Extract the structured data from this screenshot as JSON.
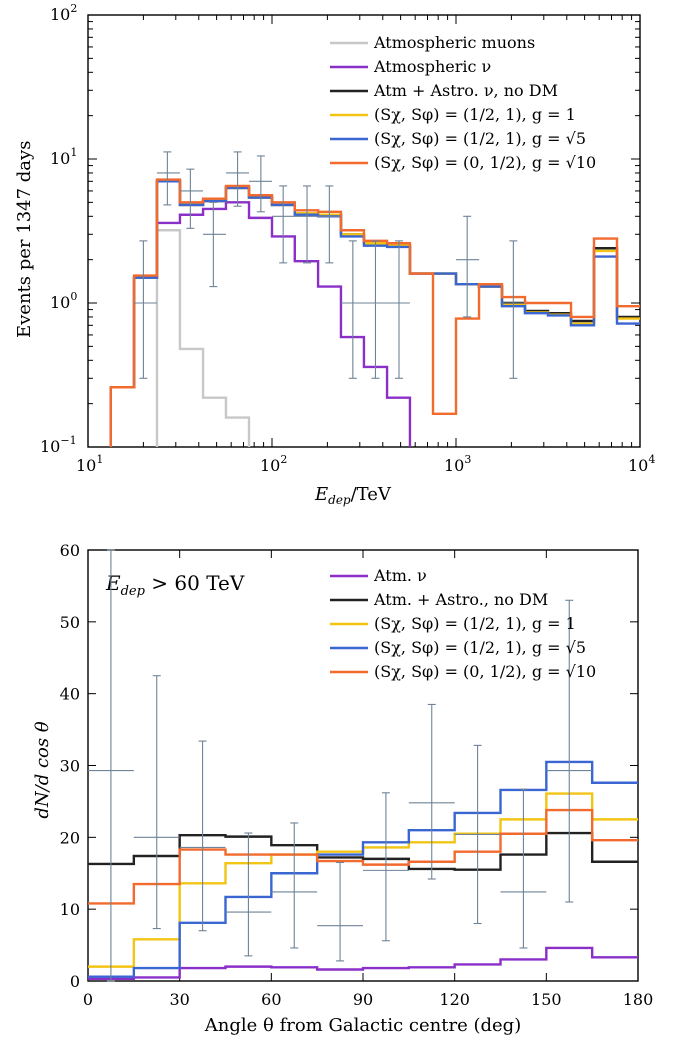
{
  "colors": {
    "muons": "#c8c8c8",
    "atm_nu": "#8b2fc9",
    "nodm": "#222222",
    "g1": "#f2c413",
    "g5": "#3a66d1",
    "g10": "#f26a2e",
    "data": "#6e8397"
  },
  "chart_data": [
    {
      "type": "line",
      "subtype": "step-histogram",
      "x_scale": "log",
      "y_scale": "log",
      "xlabel_main": "E",
      "xlabel_sub": "dep",
      "xlabel_unit": "/TeV",
      "ylabel": "Events per 1347 days",
      "xlim": [
        10,
        10000
      ],
      "ylim": [
        0.1,
        100
      ],
      "x_ticks": [
        {
          "base": "10",
          "exp": "1"
        },
        {
          "base": "10",
          "exp": "2"
        },
        {
          "base": "10",
          "exp": "3"
        },
        {
          "base": "10",
          "exp": "4"
        }
      ],
      "y_ticks": [
        {
          "base": "10",
          "exp": "−1"
        },
        {
          "base": "10",
          "exp": "0"
        },
        {
          "base": "10",
          "exp": "1"
        },
        {
          "base": "10",
          "exp": "2"
        }
      ],
      "bin_edges": [
        10,
        13.3,
        17.8,
        23.7,
        31.6,
        42.2,
        56.2,
        75,
        100,
        133,
        178,
        237,
        316,
        422,
        562,
        750,
        1000,
        1334,
        1778,
        2371,
        3162,
        4217,
        5623,
        7499,
        10000
      ],
      "legend": [
        {
          "key": "muons",
          "label": "Atmospheric muons"
        },
        {
          "key": "atm_nu",
          "label": "Atmospheric ν"
        },
        {
          "key": "nodm",
          "label": "Atm + Astro. ν, no DM"
        },
        {
          "key": "g1",
          "label": "(Sχ, Sφ) = (1/2, 1), g = 1"
        },
        {
          "key": "g5",
          "label": "(Sχ, Sφ) = (1/2, 1), g = √5"
        },
        {
          "key": "g10",
          "label": "(Sχ, Sφ) = (0, 1/2), g = √10"
        }
      ],
      "legend_position": "top-right",
      "series": [
        {
          "key": "muons",
          "values": [
            0,
            0,
            0,
            3.2,
            0.48,
            0.22,
            0.16,
            0.09,
            0,
            0,
            0,
            0,
            0,
            0,
            0,
            0,
            0,
            0,
            0,
            0,
            0,
            0,
            0,
            0
          ]
        },
        {
          "key": "atm_nu",
          "values": [
            0,
            0.26,
            1.5,
            3.6,
            4.1,
            4.5,
            5.0,
            3.9,
            2.9,
            1.95,
            1.3,
            0.58,
            0.36,
            0.22,
            0,
            0,
            0,
            0,
            0,
            0,
            0,
            0,
            0,
            0
          ]
        },
        {
          "key": "nodm",
          "values": [
            0,
            0.26,
            1.5,
            7.0,
            4.8,
            5.1,
            6.3,
            5.4,
            4.8,
            4.2,
            4.1,
            3.0,
            2.6,
            2.5,
            1.6,
            1.6,
            1.35,
            1.3,
            1.0,
            0.88,
            0.85,
            0.75,
            2.4,
            0.8
          ]
        },
        {
          "key": "g1",
          "values": [
            0,
            0.26,
            1.5,
            7.0,
            4.8,
            5.1,
            6.3,
            5.4,
            4.8,
            4.2,
            4.1,
            3.0,
            2.6,
            2.5,
            1.6,
            1.6,
            1.35,
            1.3,
            0.97,
            0.86,
            0.83,
            0.72,
            2.3,
            0.78
          ]
        },
        {
          "key": "g5",
          "values": [
            0,
            0.26,
            1.5,
            7.0,
            4.8,
            5.1,
            6.3,
            5.4,
            4.8,
            4.1,
            4.0,
            2.9,
            2.5,
            2.45,
            1.6,
            1.6,
            1.35,
            1.3,
            0.95,
            0.85,
            0.82,
            0.7,
            2.1,
            0.72
          ]
        },
        {
          "key": "g10",
          "values": [
            0,
            0.26,
            1.55,
            7.2,
            5.0,
            5.3,
            6.5,
            5.6,
            5.0,
            4.4,
            4.3,
            3.2,
            2.7,
            2.6,
            1.6,
            0.17,
            0.78,
            1.35,
            1.1,
            1.0,
            1.0,
            0.8,
            2.8,
            0.95
          ]
        }
      ],
      "data_points": [
        {
          "x": 20,
          "xlo": 17.8,
          "xhi": 23.7,
          "y": 1.0,
          "ylo": 0.3,
          "yhi": 2.7
        },
        {
          "x": 27,
          "xlo": 23.7,
          "xhi": 31.6,
          "y": 8.0,
          "ylo": 4.8,
          "yhi": 11.2
        },
        {
          "x": 36,
          "xlo": 31.6,
          "xhi": 42.2,
          "y": 6.0,
          "ylo": 3.3,
          "yhi": 8.5
        },
        {
          "x": 48,
          "xlo": 42.2,
          "xhi": 56.2,
          "y": 3.0,
          "ylo": 1.3,
          "yhi": 5.0
        },
        {
          "x": 65,
          "xlo": 56.2,
          "xhi": 75,
          "y": 8.0,
          "ylo": 4.7,
          "yhi": 11.2
        },
        {
          "x": 87,
          "xlo": 75,
          "xhi": 100,
          "y": 7.0,
          "ylo": 4.3,
          "yhi": 10.5
        },
        {
          "x": 115,
          "xlo": 100,
          "xhi": 133,
          "y": 4.0,
          "ylo": 1.9,
          "yhi": 6.5
        },
        {
          "x": 155,
          "xlo": 133,
          "xhi": 178,
          "y": 4.0,
          "ylo": 1.9,
          "yhi": 6.5
        },
        {
          "x": 205,
          "xlo": 178,
          "xhi": 237,
          "y": 4.0,
          "ylo": 1.9,
          "yhi": 6.5
        },
        {
          "x": 275,
          "xlo": 237,
          "xhi": 316,
          "y": 1.0,
          "ylo": 0.3,
          "yhi": 2.7
        },
        {
          "x": 365,
          "xlo": 316,
          "xhi": 422,
          "y": 1.0,
          "ylo": 0.3,
          "yhi": 2.7
        },
        {
          "x": 490,
          "xlo": 422,
          "xhi": 562,
          "y": 1.0,
          "ylo": 0.3,
          "yhi": 2.7
        },
        {
          "x": 1150,
          "xlo": 1000,
          "xhi": 1334,
          "y": 2.0,
          "ylo": 0.8,
          "yhi": 4.0
        },
        {
          "x": 2050,
          "xlo": 1778,
          "xhi": 2371,
          "y": 1.0,
          "ylo": 0.3,
          "yhi": 2.7
        }
      ]
    },
    {
      "type": "line",
      "subtype": "step-histogram",
      "annotation_main": "E",
      "annotation_sub": "dep",
      "annotation_rest": " > 60 TeV",
      "xlabel": "Angle θ from Galactic centre (deg)",
      "ylabel": "dN/d cos θ",
      "xlim": [
        0,
        180
      ],
      "ylim": [
        0,
        60
      ],
      "x_ticks": [
        "0",
        "30",
        "60",
        "90",
        "120",
        "150",
        "180"
      ],
      "y_ticks": [
        "0",
        "10",
        "20",
        "30",
        "40",
        "50",
        "60"
      ],
      "bin_edges": [
        0,
        15,
        30,
        45,
        60,
        75,
        90,
        105,
        120,
        135,
        150,
        165,
        180
      ],
      "legend": [
        {
          "key": "atm_nu",
          "label": "Atm. ν"
        },
        {
          "key": "nodm",
          "label": "Atm. + Astro., no DM"
        },
        {
          "key": "g1",
          "label": "(Sχ, Sφ) = (1/2, 1), g = 1"
        },
        {
          "key": "g5",
          "label": "(Sχ, Sφ) = (1/2, 1), g = √5"
        },
        {
          "key": "g10",
          "label": "(Sχ, Sφ) = (0, 1/2), g = √10"
        }
      ],
      "legend_position": "top-right",
      "series": [
        {
          "key": "atm_nu",
          "values": [
            0.3,
            0.5,
            1.8,
            2.0,
            1.9,
            1.6,
            1.8,
            1.9,
            2.3,
            3.0,
            4.6,
            3.3
          ]
        },
        {
          "key": "nodm",
          "values": [
            16.3,
            17.4,
            20.3,
            20.1,
            18.9,
            17.2,
            17.0,
            15.6,
            15.5,
            17.6,
            20.6,
            16.6
          ]
        },
        {
          "key": "g1",
          "values": [
            2.0,
            5.8,
            13.6,
            16.4,
            17.6,
            18.0,
            18.6,
            19.3,
            20.5,
            22.5,
            26.1,
            22.5
          ]
        },
        {
          "key": "g5",
          "values": [
            0.6,
            1.8,
            8.1,
            11.7,
            15.0,
            17.6,
            19.3,
            21.0,
            23.4,
            26.6,
            30.5,
            27.6
          ]
        },
        {
          "key": "g10",
          "values": [
            10.8,
            13.5,
            18.3,
            17.6,
            17.6,
            16.7,
            16.2,
            16.6,
            18.0,
            20.5,
            23.8,
            19.6
          ]
        }
      ],
      "data_points": [
        {
          "x": 7.5,
          "y": 29.3,
          "ylo": 0,
          "yhi": 60,
          "xerr": 7.5
        },
        {
          "x": 22.5,
          "y": 20.0,
          "ylo": 7.3,
          "yhi": 42.5,
          "xerr": 7.5
        },
        {
          "x": 37.5,
          "y": 18.6,
          "ylo": 7.0,
          "yhi": 33.4,
          "xerr": 7.5
        },
        {
          "x": 52.5,
          "y": 9.6,
          "ylo": 3.5,
          "yhi": 20.6,
          "xerr": 7.5
        },
        {
          "x": 67.5,
          "y": 12.4,
          "ylo": 4.6,
          "yhi": 22.0,
          "xerr": 7.5
        },
        {
          "x": 82.5,
          "y": 7.7,
          "ylo": 2.8,
          "yhi": 16.5,
          "xerr": 7.5
        },
        {
          "x": 97.5,
          "y": 15.4,
          "ylo": 5.6,
          "yhi": 26.2,
          "xerr": 7.5
        },
        {
          "x": 112.5,
          "y": 24.8,
          "ylo": 14.2,
          "yhi": 38.5,
          "xerr": 7.5
        },
        {
          "x": 127.5,
          "y": 20.4,
          "ylo": 8.0,
          "yhi": 32.8,
          "xerr": 7.5
        },
        {
          "x": 142.5,
          "y": 12.4,
          "ylo": 4.6,
          "yhi": 26.7,
          "xerr": 7.5
        },
        {
          "x": 157.5,
          "y": 29.3,
          "ylo": 11.0,
          "yhi": 53.0,
          "xerr": 7.5
        }
      ]
    }
  ]
}
